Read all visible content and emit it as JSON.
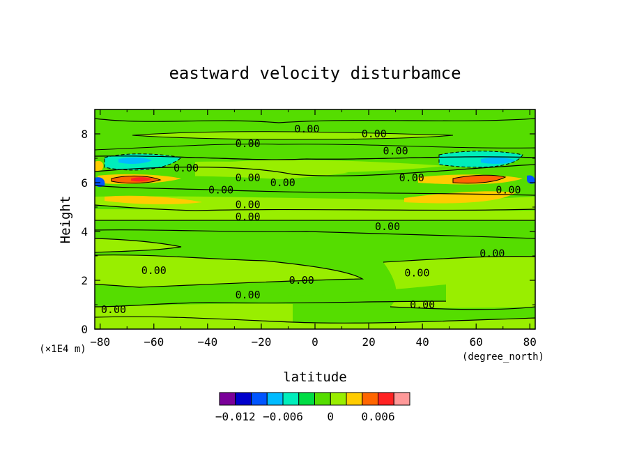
{
  "chart_data": {
    "type": "heatmap",
    "title": "eastward velocity disturbamce",
    "xlabel": "latitude",
    "xunits": "(degree_north)",
    "ylabel": "Height",
    "yunits": "(×1E4 m)",
    "xlim": [
      -82,
      82
    ],
    "ylim": [
      0,
      9
    ],
    "xticks": [
      -80,
      -60,
      -40,
      -20,
      0,
      20,
      40,
      60,
      80
    ],
    "xtick_labels": [
      "−80",
      "−60",
      "−40",
      "−20",
      "0",
      "20",
      "40",
      "60",
      "80"
    ],
    "yticks": [
      0,
      2,
      4,
      6,
      8
    ],
    "ytick_labels": [
      "0",
      "2",
      "4",
      "6",
      "8"
    ],
    "contour_label": "0.00",
    "contour_labels": [
      {
        "x": -3,
        "y": 8.2
      },
      {
        "x": 22,
        "y": 8.0
      },
      {
        "x": -25,
        "y": 7.6
      },
      {
        "x": 30,
        "y": 7.3
      },
      {
        "x": -48,
        "y": 6.6
      },
      {
        "x": -25,
        "y": 6.2
      },
      {
        "x": -12,
        "y": 6.0
      },
      {
        "x": 36,
        "y": 6.2
      },
      {
        "x": -35,
        "y": 5.7
      },
      {
        "x": 72,
        "y": 5.7
      },
      {
        "x": -25,
        "y": 5.1
      },
      {
        "x": -25,
        "y": 4.6
      },
      {
        "x": 27,
        "y": 4.2
      },
      {
        "x": 66,
        "y": 3.1
      },
      {
        "x": -60,
        "y": 2.4
      },
      {
        "x": -5,
        "y": 2.0
      },
      {
        "x": 38,
        "y": 2.3
      },
      {
        "x": -25,
        "y": 1.4
      },
      {
        "x": 40,
        "y": 1.0
      },
      {
        "x": -75,
        "y": 0.8
      }
    ],
    "colorbar": {
      "colors": [
        "#7a0099",
        "#0000cc",
        "#0055ff",
        "#00bbff",
        "#00eebb",
        "#00dd44",
        "#55dd00",
        "#99ee00",
        "#ffcc00",
        "#ff6600",
        "#ff2222",
        "#ff9999"
      ],
      "tick_labels": [
        "−0.012",
        "−0.006",
        "0",
        "0.006"
      ]
    }
  }
}
